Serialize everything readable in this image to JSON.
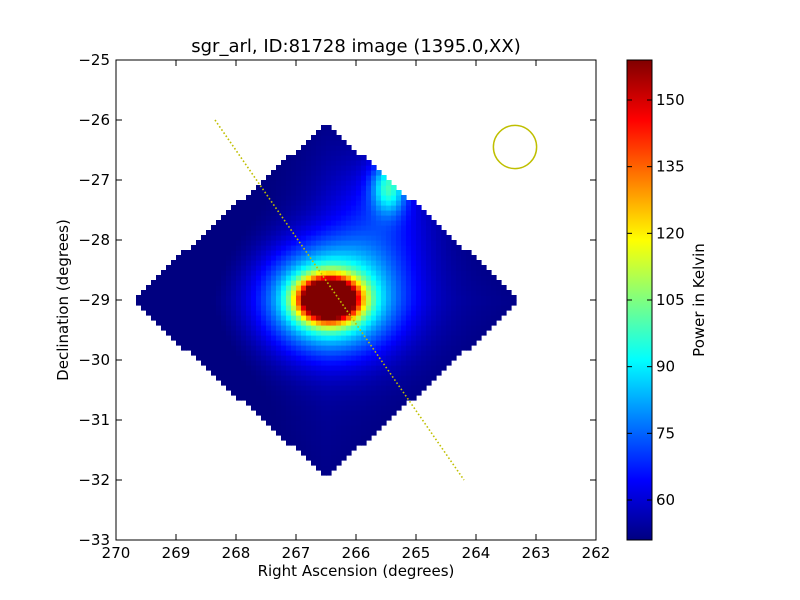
{
  "chart_data": {
    "type": "heatmap",
    "title": "sgr_arl, ID:81728 image (1395.0,XX)",
    "xlabel": "Right Ascension (degrees)",
    "ylabel": "Declination (degrees)",
    "xlim": [
      270,
      262
    ],
    "ylim": [
      -33,
      -25
    ],
    "x_ticks": [
      270,
      269,
      268,
      267,
      266,
      265,
      264,
      263,
      262
    ],
    "x_tick_labels": [
      "270",
      "269",
      "268",
      "267",
      "266",
      "265",
      "264",
      "263",
      "262"
    ],
    "y_ticks": [
      -25,
      -26,
      -27,
      -28,
      -29,
      -30,
      -31,
      -32,
      -33
    ],
    "y_tick_labels": [
      "−25",
      "−26",
      "−27",
      "−28",
      "−29",
      "−30",
      "−31",
      "−32",
      "−33"
    ],
    "colorbar": {
      "label": "Power in Kelvin",
      "range": [
        51,
        159
      ],
      "ticks": [
        60,
        75,
        90,
        105,
        120,
        135,
        150
      ],
      "tick_labels": [
        "60",
        "75",
        "90",
        "105",
        "120",
        "135",
        "150"
      ],
      "colormap": "jet"
    },
    "footprint": {
      "shape": "diamond",
      "center": [
        266.5,
        -29.0
      ],
      "half_width_ra": 3.25,
      "half_height_dec": 2.95
    },
    "background_level": 58,
    "sources": [
      {
        "ra": 266.45,
        "dec": -28.98,
        "peak": 159,
        "sigma_ra": 0.3,
        "sigma_dec": 0.22
      },
      {
        "ra": 266.45,
        "dec": -28.98,
        "peak": 60,
        "sigma_ra": 0.75,
        "sigma_dec": 0.6
      },
      {
        "ra": 265.45,
        "dec": -27.1,
        "peak": 36,
        "sigma_ra": 0.2,
        "sigma_dec": 0.3
      },
      {
        "ra": 265.6,
        "dec": -27.6,
        "peak": 14,
        "sigma_ra": 0.6,
        "sigma_dec": 0.7
      },
      {
        "ra": 267.8,
        "dec": -29.0,
        "peak": -6,
        "sigma_ra": 1.4,
        "sigma_dec": 1.2
      }
    ],
    "scan_line": {
      "start": [
        268.35,
        -26.0
      ],
      "end": [
        264.2,
        -32.0
      ],
      "color": "#bfbf00"
    },
    "beam_circle": {
      "center": [
        263.35,
        -26.45
      ],
      "radius_deg": 0.36,
      "color": "#bfbf00"
    }
  }
}
